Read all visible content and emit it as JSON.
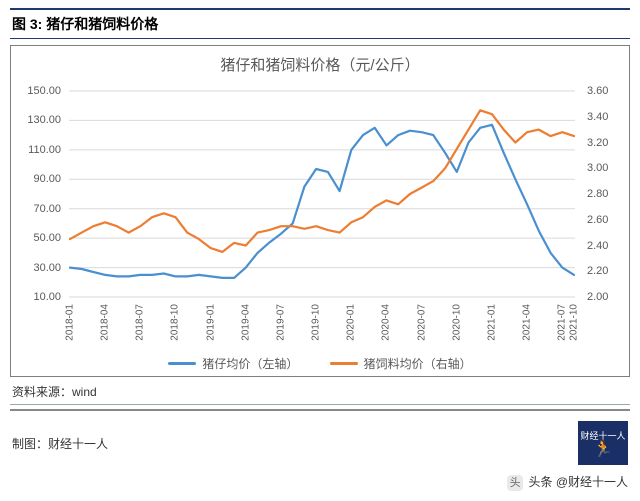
{
  "figure_label": "图 3:  猪仔和猪饲料价格",
  "chart": {
    "type": "line-dual-axis",
    "title": "猪仔和猪饲料价格（元/公斤）",
    "title_fontsize": 15,
    "title_color": "#595959",
    "background_color": "#ffffff",
    "frame_border_color": "#7f7f7f",
    "grid_color": "#d9d9d9",
    "grid_on": true,
    "label_fontsize": 11,
    "label_color": "#595959",
    "series": [
      {
        "name": "猪仔均价（左轴）",
        "axis": "left",
        "color": "#4a8fd0",
        "line_width": 2.2,
        "data": [
          30,
          29,
          27,
          25,
          24,
          24,
          25,
          25,
          26,
          24,
          24,
          25,
          24,
          23,
          23,
          30,
          40,
          47,
          53,
          60,
          85,
          97,
          95,
          82,
          110,
          120,
          125,
          113,
          120,
          123,
          122,
          120,
          108,
          95,
          115,
          125,
          127,
          108,
          90,
          73,
          55,
          40,
          30,
          25
        ]
      },
      {
        "name": "猪饲料均价（右轴）",
        "axis": "right",
        "color": "#ed7d31",
        "line_width": 2.2,
        "data": [
          2.45,
          2.5,
          2.55,
          2.58,
          2.55,
          2.5,
          2.55,
          2.62,
          2.65,
          2.62,
          2.5,
          2.45,
          2.38,
          2.35,
          2.42,
          2.4,
          2.5,
          2.52,
          2.55,
          2.55,
          2.53,
          2.55,
          2.52,
          2.5,
          2.58,
          2.62,
          2.7,
          2.75,
          2.72,
          2.8,
          2.85,
          2.9,
          3.0,
          3.15,
          3.3,
          3.45,
          3.42,
          3.3,
          3.2,
          3.28,
          3.3,
          3.25,
          3.28,
          3.25
        ]
      }
    ],
    "x": {
      "categories": [
        "2018-01",
        "2018-02",
        "2018-03",
        "2018-04",
        "2018-05",
        "2018-06",
        "2018-07",
        "2018-08",
        "2018-09",
        "2018-10",
        "2018-11",
        "2018-12",
        "2019-01",
        "2019-02",
        "2019-03",
        "2019-04",
        "2019-05",
        "2019-06",
        "2019-07",
        "2019-08",
        "2019-09",
        "2019-10",
        "2019-11",
        "2019-12",
        "2020-01",
        "2020-02",
        "2020-03",
        "2020-04",
        "2020-05",
        "2020-06",
        "2020-07",
        "2020-08",
        "2020-09",
        "2020-10",
        "2020-11",
        "2020-12",
        "2021-01",
        "2021-02",
        "2021-03",
        "2021-04",
        "2021-05",
        "2021-06",
        "2021-07",
        "2021-10"
      ],
      "tick_every": 3,
      "label_rotation": -90,
      "label_fontsize": 10
    },
    "y_left": {
      "min": 10,
      "max": 150,
      "step": 20,
      "ticks": [
        "10.00",
        "30.00",
        "50.00",
        "70.00",
        "90.00",
        "110.00",
        "130.00",
        "150.00"
      ]
    },
    "y_right": {
      "min": 2.0,
      "max": 3.6,
      "step": 0.2,
      "ticks": [
        "2.00",
        "2.20",
        "2.40",
        "2.60",
        "2.80",
        "3.00",
        "3.20",
        "3.40",
        "3.60"
      ]
    },
    "legend_position": "bottom"
  },
  "source_label": "资料来源：",
  "source_value": "wind",
  "credit_label": "制图：",
  "credit_value": "财经十一人",
  "logo_text": "财经十一人",
  "footer_prefix": "头条",
  "footer_handle": "@财经十一人"
}
